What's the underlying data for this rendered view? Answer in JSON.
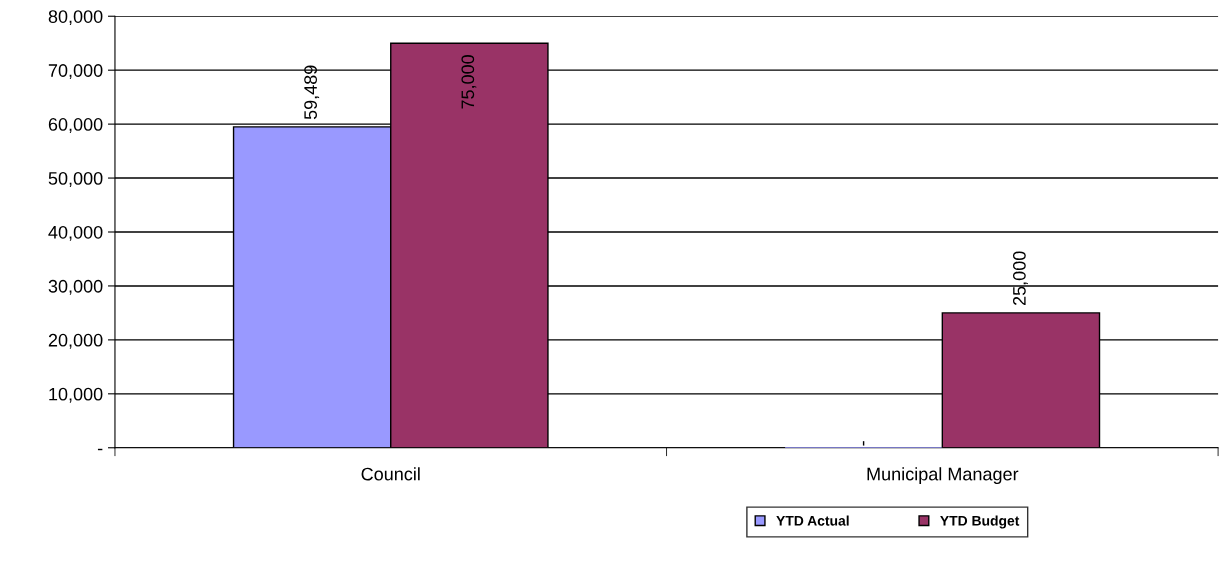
{
  "chart_data": {
    "type": "bar",
    "categories": [
      "Council",
      "Municipal Manager"
    ],
    "series": [
      {
        "name": "YTD Actual",
        "color": "#9999ff",
        "values": [
          59489,
          0
        ],
        "value_labels": [
          "59,489",
          "-"
        ]
      },
      {
        "name": "YTD Budget",
        "color": "#993366",
        "values": [
          75000,
          25000
        ],
        "value_labels": [
          "75,000",
          "25,000"
        ]
      }
    ],
    "ylim": [
      0,
      80000
    ],
    "yticks": [
      {
        "value": 0,
        "label": "-"
      },
      {
        "value": 10000,
        "label": "10,000"
      },
      {
        "value": 20000,
        "label": "20,000"
      },
      {
        "value": 30000,
        "label": "30,000"
      },
      {
        "value": 40000,
        "label": "40,000"
      },
      {
        "value": 50000,
        "label": "50,000"
      },
      {
        "value": 60000,
        "label": "60,000"
      },
      {
        "value": 70000,
        "label": "70,000"
      },
      {
        "value": 80000,
        "label": "80,000"
      }
    ],
    "grid": "y",
    "legend": "bottom"
  }
}
